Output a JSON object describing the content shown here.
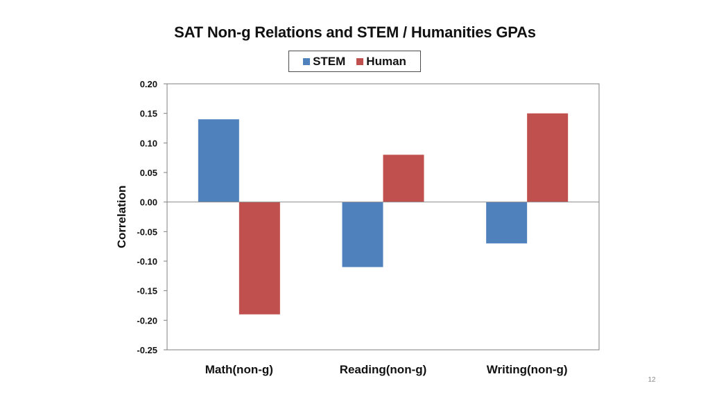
{
  "slide": {
    "page_number": "12"
  },
  "chart_data": {
    "type": "bar",
    "title": "SAT Non-g Relations and STEM / Humanities GPAs",
    "xlabel": "",
    "ylabel": "Correlation",
    "categories": [
      "Math(non-g)",
      "Reading(non-g)",
      "Writing(non-g)"
    ],
    "series": [
      {
        "name": "STEM",
        "values": [
          0.14,
          -0.11,
          -0.07
        ],
        "color": "#4f81bd"
      },
      {
        "name": "Human",
        "values": [
          -0.19,
          0.08,
          0.15
        ],
        "color": "#c0504d"
      }
    ],
    "ylim": [
      -0.25,
      0.2
    ],
    "yticks": [
      "0.20",
      "0.15",
      "0.10",
      "0.05",
      "0.00",
      "-0.05",
      "-0.10",
      "-0.15",
      "-0.20",
      "-0.25"
    ],
    "grid": false,
    "legend": "top-center"
  }
}
